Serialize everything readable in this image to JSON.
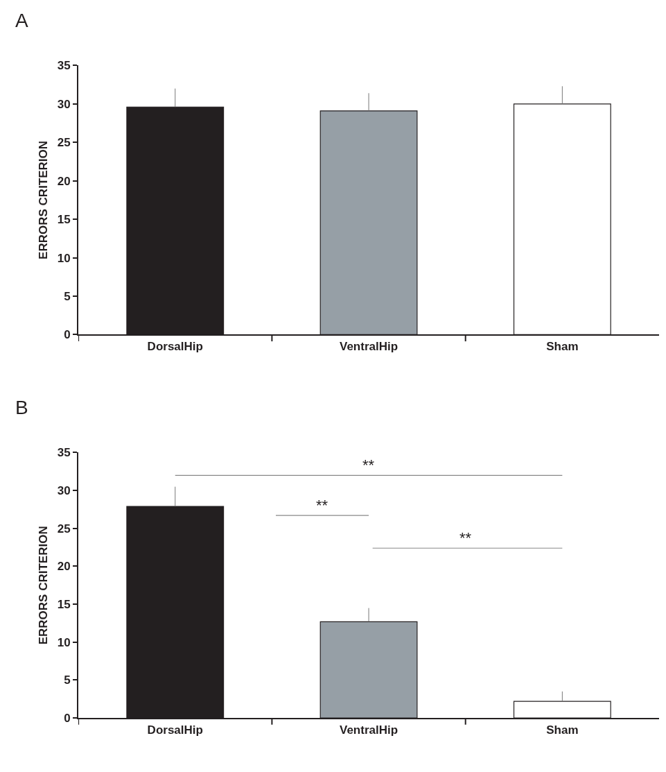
{
  "chart_data": [
    {
      "type": "bar",
      "title": "A",
      "ylabel": "ERRORS CRITERION",
      "categories": [
        "DorsalHip",
        "VentralHip",
        "Sham"
      ],
      "values": [
        29.6,
        29.1,
        30.0
      ],
      "colors": [
        "#231f20",
        "#969fa6",
        "#ffffff"
      ],
      "errors": [
        [
          29.6,
          32.0
        ],
        [
          29.1,
          31.4
        ],
        [
          30.0,
          32.3
        ]
      ],
      "ylim": [
        0,
        35
      ],
      "yticks": [
        0,
        5,
        10,
        15,
        20,
        25,
        30,
        35
      ]
    },
    {
      "type": "bar",
      "title": "B",
      "ylabel": "ERRORS CRITERION",
      "categories": [
        "DorsalHip",
        "VentralHip",
        "Sham"
      ],
      "values": [
        27.9,
        12.7,
        2.2
      ],
      "colors": [
        "#231f20",
        "#969fa6",
        "#ffffff"
      ],
      "errors": [
        [
          27.9,
          30.5
        ],
        [
          12.7,
          14.5
        ],
        [
          2.2,
          3.5
        ]
      ],
      "ylim": [
        0,
        35
      ],
      "yticks": [
        0,
        5,
        10,
        15,
        20,
        25,
        30,
        35
      ],
      "annotations": [
        "**",
        "**",
        "**"
      ]
    }
  ]
}
